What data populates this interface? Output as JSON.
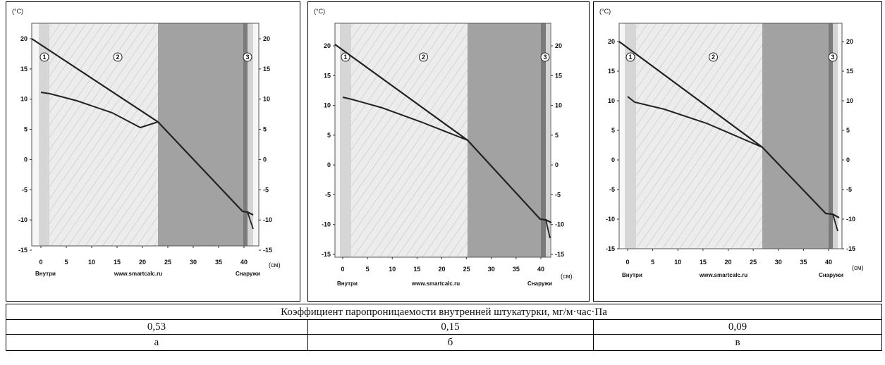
{
  "panels": [
    {
      "id": "a",
      "unit_top": "(°C)",
      "unit_right": "(см)",
      "footer_left": "Внутри",
      "footer_center": "www.smartcalc.ru",
      "footer_right": "Снаружи",
      "layer_labels": [
        "1",
        "2",
        "3"
      ],
      "left_ticks": [
        "20",
        "15",
        "10",
        "5",
        "0",
        "-5",
        "-10",
        "-15"
      ],
      "right_ticks": [
        "20",
        "15",
        "10",
        "5",
        "0",
        "-5",
        "-10",
        "-15"
      ],
      "x_ticks": [
        "0",
        "5",
        "10",
        "15",
        "20",
        "25",
        "30",
        "35",
        "40"
      ]
    },
    {
      "id": "b",
      "unit_top": "(°C)",
      "unit_right": "(см)",
      "footer_left": "Внутри",
      "footer_center": "www.smartcalc.ru",
      "footer_right": "Снаружи",
      "layer_labels": [
        "1",
        "2",
        "3"
      ],
      "left_ticks": [
        "20",
        "15",
        "10",
        "5",
        "0",
        "-5",
        "-10",
        "-15"
      ],
      "right_ticks": [
        "20",
        "15",
        "10",
        "5",
        "0",
        "-5",
        "-10",
        "-15"
      ],
      "x_ticks": [
        "0",
        "5",
        "10",
        "15",
        "20",
        "25",
        "30",
        "35",
        "40"
      ]
    },
    {
      "id": "c",
      "unit_top": "(°C)",
      "unit_right": "(см)",
      "footer_left": "Внутри",
      "footer_center": "www.smartcalc.ru",
      "footer_right": "Снаружи",
      "layer_labels": [
        "1",
        "2",
        "3"
      ],
      "left_ticks": [
        "20",
        "15",
        "10",
        "5",
        "0",
        "-5",
        "-10",
        "-15"
      ],
      "right_ticks": [
        "20",
        "15",
        "10",
        "5",
        "0",
        "-5",
        "-10",
        "-15"
      ],
      "x_ticks": [
        "0",
        "5",
        "10",
        "15",
        "20",
        "25",
        "30",
        "35",
        "40"
      ]
    }
  ],
  "caption": "Коэффициент паропроницаемости внутренней штукатурки, мг/м·час·Па",
  "values": [
    "0,53",
    "0,15",
    "0,09"
  ],
  "letters": [
    "а",
    "б",
    "в"
  ],
  "colors": {
    "plaster_inner": "#d6d6d6",
    "main_layer": "#ececec",
    "insulation": "#a2a2a2",
    "outer_plaster": "#7a7a7a",
    "curve": "#222222"
  }
}
